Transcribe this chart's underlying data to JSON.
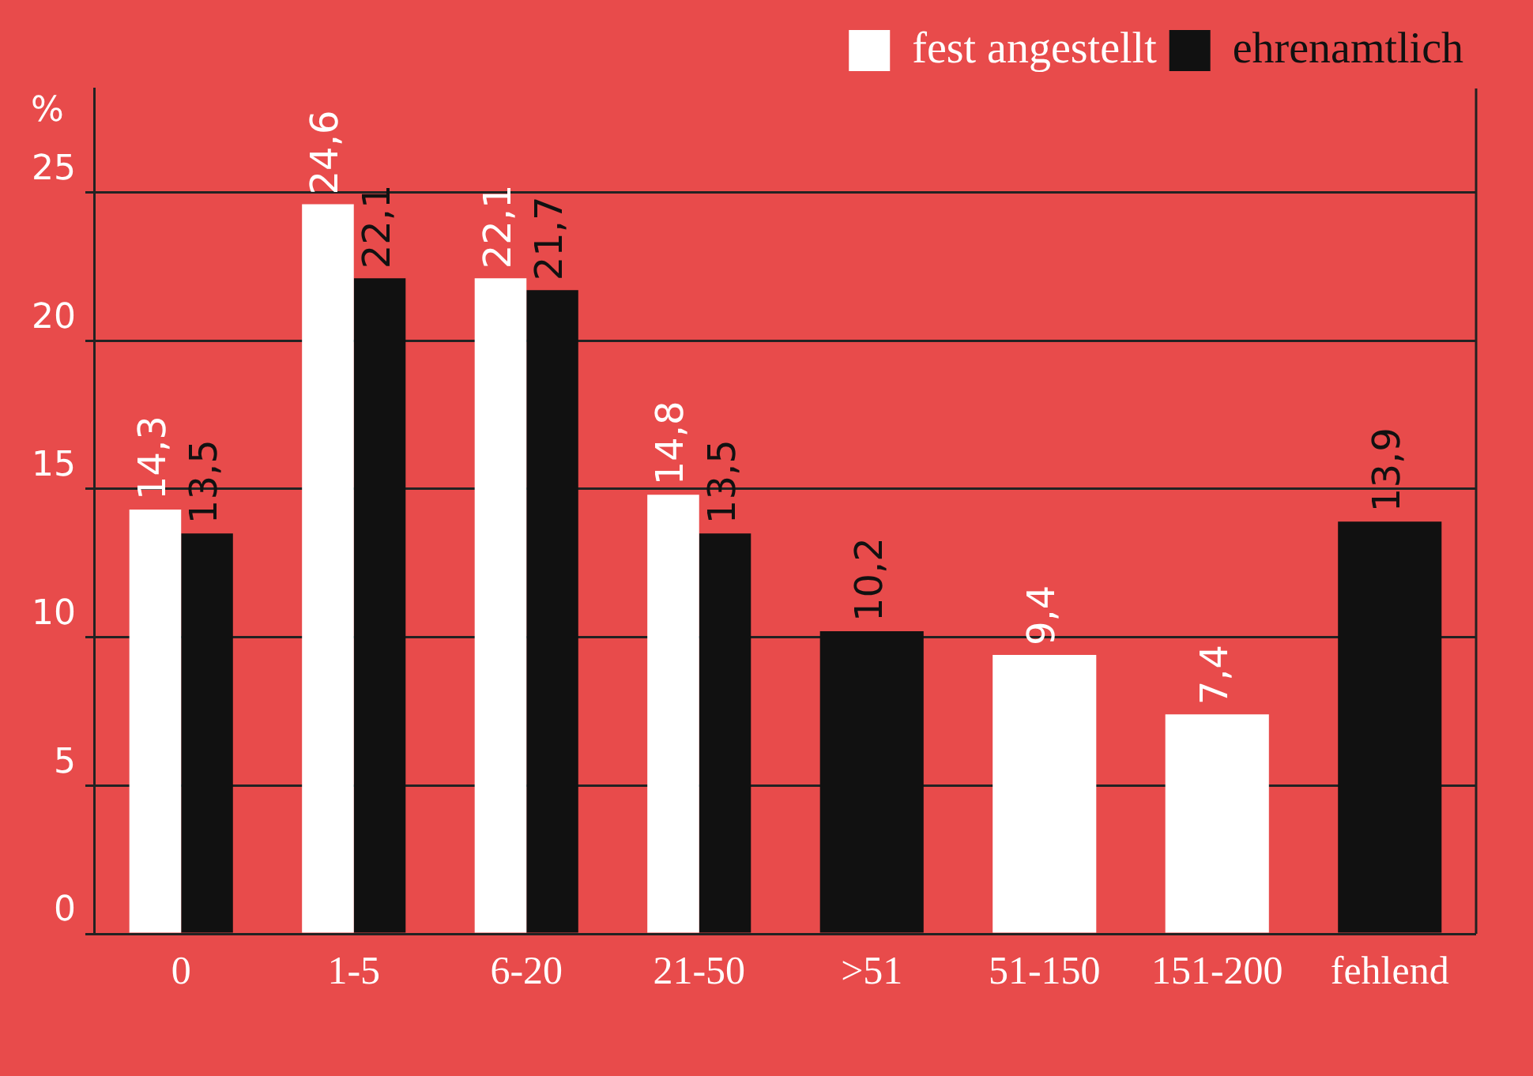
{
  "chart_data": {
    "type": "bar",
    "ylabel": "%",
    "categories": [
      "0",
      "1-5",
      "6-20",
      "21-50",
      ">51",
      "51-150",
      "151-200",
      "fehlend"
    ],
    "series": [
      {
        "name": "fest angestellt",
        "color": "#ffffff",
        "values": [
          14.3,
          24.6,
          22.1,
          14.8,
          null,
          9.4,
          7.4,
          null
        ],
        "value_labels": [
          "14,3",
          "24,6",
          "22,1",
          "14,8",
          null,
          "9,4",
          "7,4",
          null
        ]
      },
      {
        "name": "ehrenamtlich",
        "color": "#111111",
        "values": [
          13.5,
          22.1,
          21.7,
          13.5,
          10.2,
          null,
          null,
          13.9
        ],
        "value_labels": [
          "13,5",
          "22,1",
          "21,7",
          "13,5",
          "10,2",
          null,
          null,
          "13,9"
        ]
      }
    ],
    "ylim": [
      0,
      28.5
    ],
    "yticks": [
      0,
      5,
      10,
      15,
      20,
      25
    ],
    "grid": "y",
    "legend": "top right"
  }
}
